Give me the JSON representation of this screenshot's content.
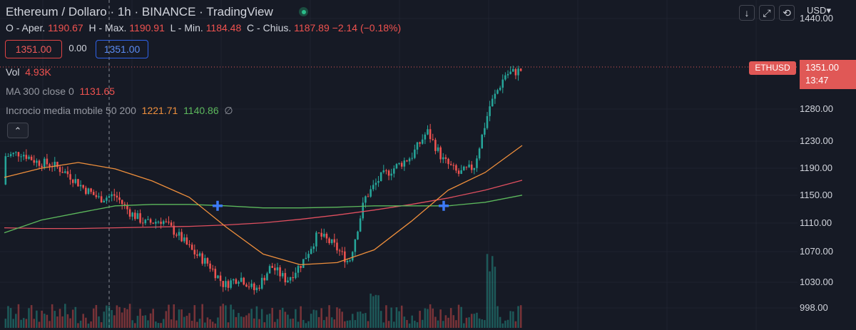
{
  "header": {
    "title": "Ethereum / Dollaro · 1h · BINANCE · TradingView",
    "ohlc": {
      "open_label": "O - Aper.",
      "open": "1190.67",
      "high_label": "H - Max.",
      "high": "1190.91",
      "low_label": "L - Min.",
      "low": "1184.48",
      "close_label": "C - Chius.",
      "close": "1187.89",
      "change": "−2.14 (−0.18%)"
    }
  },
  "trade": {
    "sell": "1351.00",
    "spread": "0.00",
    "buy": "1351.00"
  },
  "indicators": {
    "vol": {
      "label": "Vol",
      "value": "4.93K"
    },
    "ma": {
      "label": "MA 300 close 0",
      "value": "1131.65"
    },
    "cross": {
      "label": "Incrocio media mobile 50 200",
      "v1": "1221.71",
      "v2": "1140.86",
      "icon": "∅"
    }
  },
  "price_axis": {
    "currency": "USD▾",
    "ticks": [
      "1440.00",
      "1280.00",
      "1230.00",
      "1190.00",
      "1150.00",
      "1110.00",
      "1070.00",
      "1030.00",
      "998.00"
    ],
    "symbol_tag": "ETHUSD",
    "current_price": "1351.00",
    "countdown": "13:47"
  },
  "colors": {
    "bg": "#161a25",
    "up": "#26a69a",
    "down": "#ef5350",
    "sma_fast": "#ef8f3c",
    "sma_slow": "#5cb85c",
    "ma300": "#e04f5f",
    "cross_marker": "#3d7bf7"
  },
  "chart_data": {
    "type": "candlestick",
    "series": [
      {
        "name": "ETHUSD 1h",
        "values_note": "ohlc"
      },
      {
        "name": "MA 300 close 0",
        "values": [
          1129,
          1128,
          1128,
          1129,
          1130,
          1131,
          1133,
          1136,
          1141,
          1147,
          1154,
          1162,
          1171,
          1182,
          1196
        ]
      },
      {
        "name": "Incrocio media mobile 50",
        "values": [
          1200,
          1213,
          1221,
          1212,
          1195,
          1172,
          1130,
          1092,
          1077,
          1080,
          1098,
          1138,
          1182,
          1207,
          1245
        ]
      },
      {
        "name": "Incrocio media mobile 200",
        "values": [
          1122,
          1140,
          1150,
          1160,
          1162,
          1162,
          1160,
          1157,
          1157,
          1158,
          1160,
          1160,
          1160,
          1165,
          1175
        ]
      }
    ],
    "ohlc_anchors": [
      [
        1190,
        1230
      ],
      [
        1210,
        1235
      ],
      [
        1205,
        1222
      ],
      [
        1220,
        1218
      ],
      [
        1215,
        1205
      ],
      [
        1195,
        1185
      ],
      [
        1185,
        1170
      ],
      [
        1170,
        1175
      ],
      [
        1165,
        1150
      ],
      [
        1150,
        1135
      ],
      [
        1140,
        1140
      ],
      [
        1130,
        1120
      ],
      [
        1110,
        1095
      ],
      [
        1090,
        1078
      ],
      [
        1065,
        1048
      ],
      [
        1050,
        1060
      ],
      [
        1045,
        1040
      ],
      [
        1055,
        1075
      ],
      [
        1070,
        1055
      ],
      [
        1050,
        1080
      ],
      [
        1080,
        1120
      ],
      [
        1115,
        1105
      ],
      [
        1095,
        1080
      ],
      [
        1080,
        1170
      ],
      [
        1180,
        1200
      ],
      [
        1190,
        1215
      ],
      [
        1220,
        1230
      ],
      [
        1240,
        1265
      ],
      [
        1260,
        1225
      ],
      [
        1225,
        1205
      ],
      [
        1200,
        1215
      ],
      [
        1225,
        1300
      ],
      [
        1320,
        1345
      ],
      [
        1340,
        1351
      ]
    ],
    "ylim": [
      985,
      1450
    ],
    "cross_markers": [
      {
        "series": "Incrocio media mobile 50",
        "price": 1160
      },
      {
        "series": "Incrocio media mobile 50",
        "price": 1160
      }
    ]
  }
}
